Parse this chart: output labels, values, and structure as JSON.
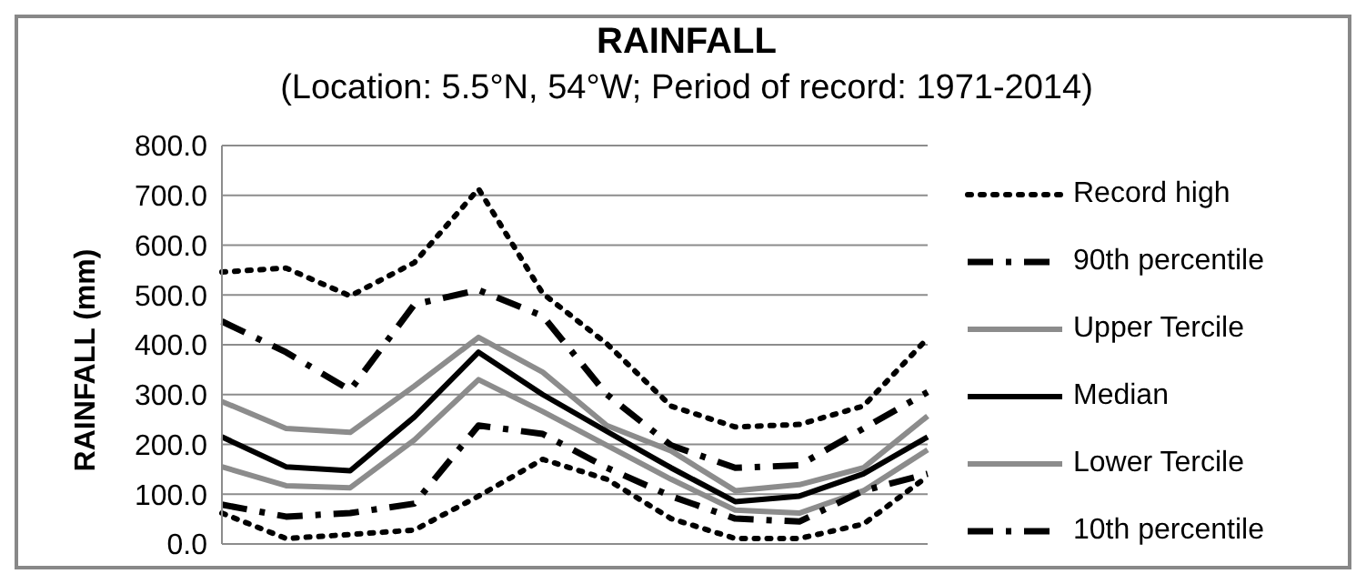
{
  "chart_data": {
    "type": "line",
    "title": "RAINFALL",
    "subtitle": "(Location: 5.5°N, 54°W; Period of record: 1971-2014)",
    "ylabel": "RAINFALL (mm)",
    "categories": [
      null,
      null,
      null,
      null,
      null,
      null,
      null,
      null,
      null,
      null,
      null,
      null
    ],
    "series": [
      {
        "name": "Record high",
        "color": "#000000",
        "line_style": "dotted",
        "values": [
          546,
          554,
          498,
          565,
          713,
          503,
          402,
          277,
          235,
          240,
          277,
          413
        ]
      },
      {
        "name": "90th percentile",
        "color": "#000000",
        "line_style": "dashed",
        "values": [
          447,
          385,
          309,
          481,
          510,
          458,
          300,
          198,
          153,
          158,
          232,
          305
        ]
      },
      {
        "name": "Upper Tercile",
        "color": "#8c8c8c",
        "line_style": "solid",
        "values": [
          286,
          232,
          224,
          317,
          415,
          345,
          238,
          187,
          107,
          119,
          153,
          257
        ]
      },
      {
        "name": "Median",
        "color": "#000000",
        "line_style": "solid",
        "values": [
          215,
          155,
          147,
          255,
          385,
          300,
          226,
          153,
          85,
          96,
          141,
          215
        ]
      },
      {
        "name": "Lower Tercile",
        "color": "#8c8c8c",
        "line_style": "solid",
        "values": [
          155,
          117,
          113,
          209,
          330,
          266,
          198,
          130,
          68,
          62,
          107,
          189
        ]
      },
      {
        "name": "10th percentile",
        "color": "#000000",
        "line_style": "dashed",
        "values": [
          79,
          55,
          62,
          81,
          238,
          221,
          153,
          96,
          51,
          45,
          107,
          141
        ]
      },
      {
        "color": "#000000",
        "line_style": "dotted",
        "values": [
          62,
          11,
          19,
          28,
          96,
          170,
          130,
          51,
          11,
          11,
          40,
          136
        ]
      }
    ],
    "ylim": [
      0,
      800
    ],
    "yticks": [
      {
        "value": 0,
        "label": "0.0"
      },
      {
        "value": 100,
        "label": "100.0"
      },
      {
        "value": 200,
        "label": "200.0"
      },
      {
        "value": 300,
        "label": "300.0"
      },
      {
        "value": 400,
        "label": "400.0"
      },
      {
        "value": 500,
        "label": "500.0"
      },
      {
        "value": 600,
        "label": "600.0"
      },
      {
        "value": 700,
        "label": "700.0"
      },
      {
        "value": 800,
        "label": "800.0"
      }
    ],
    "grid": "y",
    "legend": "right",
    "marker": "none",
    "tick_labels": "y"
  }
}
